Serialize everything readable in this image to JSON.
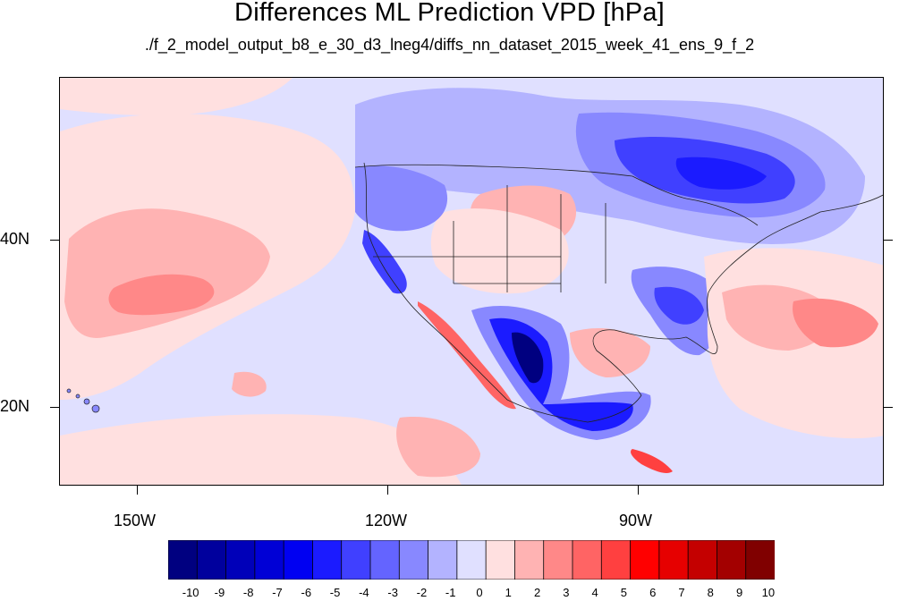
{
  "title": "Differences ML Prediction VPD [hPa]",
  "subtitle": "./f_2_model_output_b8_e_30_d3_lneg4/diffs_nn_dataset_2015_week_41_ens_9_f_2",
  "axes": {
    "lat_labels": [
      "40N",
      "20N"
    ],
    "lon_labels": [
      "150W",
      "120W",
      "90W"
    ]
  },
  "colorbar": {
    "labels": [
      "-10",
      "-9",
      "-8",
      "-7",
      "-6",
      "-5",
      "-4",
      "-3",
      "-2",
      "-1",
      "0",
      "1",
      "2",
      "3",
      "4",
      "5",
      "6",
      "7",
      "8",
      "9",
      "10"
    ],
    "colors": [
      "#000080",
      "#00009d",
      "#0000b9",
      "#0000d6",
      "#0000f2",
      "#1b1bff",
      "#4040ff",
      "#6464ff",
      "#8888ff",
      "#b3b3ff",
      "#e0e0ff",
      "#ffe0e0",
      "#ffb3b3",
      "#ff8888",
      "#ff6464",
      "#ff4040",
      "#ff0000",
      "#e60000",
      "#c40000",
      "#a30000",
      "#800000"
    ]
  }
}
